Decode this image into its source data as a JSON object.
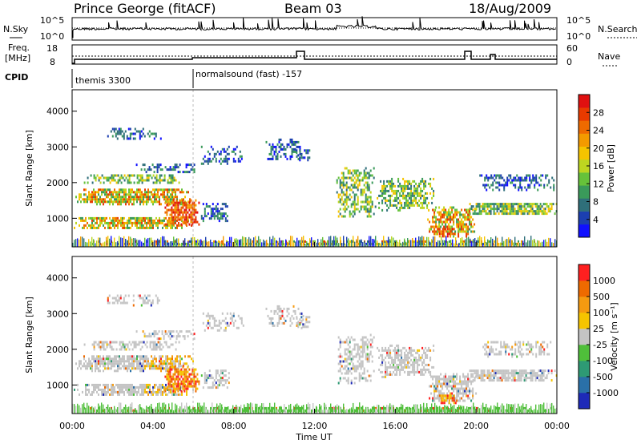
{
  "header": {
    "station": "Prince George (fitACF)",
    "beam": "Beam 03",
    "date": "18/Aug/2009"
  },
  "top_panels": {
    "nsky_label": "N.Sky",
    "nsky_ticks": [
      "10^5",
      "10^0"
    ],
    "nsearch_label": "N.Search",
    "nsearch_ticks": [
      "10^5",
      "10^0"
    ],
    "freq_label_1": "Freq.",
    "freq_label_2": "[MHz]",
    "freq_ticks": [
      "18",
      "8"
    ],
    "nave_label": "Nave",
    "nave_ticks": [
      "60",
      "0"
    ],
    "cpid_label": "CPID",
    "cpid_1": "themis 3300",
    "cpid_2": "normalsound (fast) -157"
  },
  "chart_data": [
    {
      "type": "heatmap",
      "name": "power",
      "ylabel": "Slant Range [km]",
      "yticks": [
        "1000",
        "2000",
        "3000",
        "4000"
      ],
      "ylim": [
        200,
        4600
      ],
      "xlim": [
        0,
        24
      ],
      "colorbar": {
        "label": "Power [dB]",
        "ticks": [
          "4",
          "8",
          "12",
          "16",
          "20",
          "24",
          "28"
        ],
        "colors": [
          "#1010ff",
          "#1c3fb0",
          "#2f6f7a",
          "#3a9a5a",
          "#66c23a",
          "#bdd620",
          "#f5c400",
          "#f39a00",
          "#ee6a00",
          "#e83a00",
          "#e01010"
        ]
      }
    },
    {
      "type": "heatmap",
      "name": "velocity",
      "ylabel": "Slant Range [km]",
      "yticks": [
        "1000",
        "2000",
        "3000",
        "4000"
      ],
      "ylim": [
        200,
        4600
      ],
      "xlim": [
        0,
        24
      ],
      "colorbar": {
        "label": "Velocity [m s⁻¹]",
        "ticks": [
          "1000",
          "500",
          "100",
          "25",
          "-25",
          "-100",
          "-500",
          "-1000"
        ],
        "colors": [
          "#1e2ab8",
          "#2a70a8",
          "#2e9a74",
          "#4fbf3a",
          "#c4c4c4",
          "#f5c400",
          "#f59a10",
          "#ee6a00",
          "#ff2020"
        ]
      }
    }
  ],
  "xaxis": {
    "ticks": [
      "00:00",
      "04:00",
      "08:00",
      "12:00",
      "16:00",
      "20:00",
      "00:00"
    ],
    "label": "Time UT"
  }
}
